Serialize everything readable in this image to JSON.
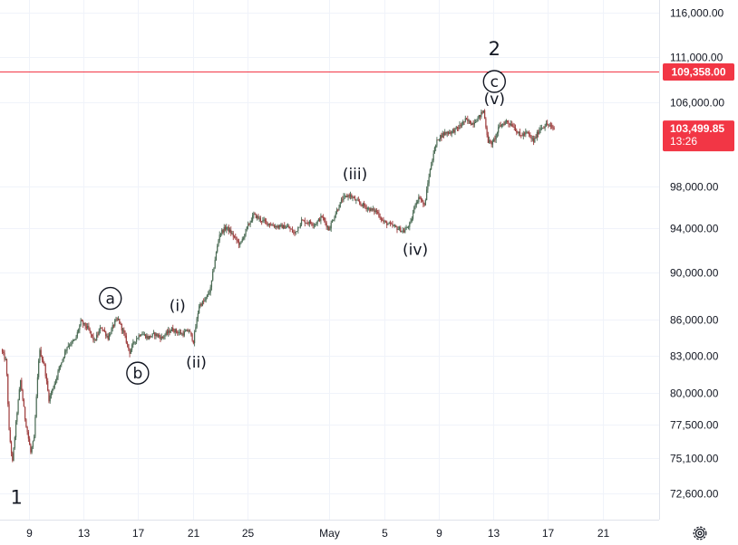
{
  "chart_data": {
    "type": "candlestick",
    "y_ticks": [
      {
        "value": 116000,
        "label": "116,000.00"
      },
      {
        "value": 111000,
        "label": "111,000.00"
      },
      {
        "value": 106000,
        "label": "106,000.00"
      },
      {
        "value": 98000,
        "label": "98,000.00"
      },
      {
        "value": 94000,
        "label": "94,000.00"
      },
      {
        "value": 90000,
        "label": "90,000.00"
      },
      {
        "value": 86000,
        "label": "86,000.00"
      },
      {
        "value": 83000,
        "label": "83,000.00"
      },
      {
        "value": 80000,
        "label": "80,000.00"
      },
      {
        "value": 77500,
        "label": "77,500.00"
      },
      {
        "value": 75100,
        "label": "75,100.00"
      },
      {
        "value": 72600,
        "label": "72,600.00"
      }
    ],
    "x_ticks": [
      {
        "date": "2025-04-09",
        "label": "9"
      },
      {
        "date": "2025-04-13",
        "label": "13"
      },
      {
        "date": "2025-04-17",
        "label": "17"
      },
      {
        "date": "2025-04-21",
        "label": "21"
      },
      {
        "date": "2025-04-25",
        "label": "25"
      },
      {
        "date": "2025-05-01",
        "label": "May"
      },
      {
        "date": "2025-05-05",
        "label": "5"
      },
      {
        "date": "2025-05-09",
        "label": "9"
      },
      {
        "date": "2025-05-13",
        "label": "13"
      },
      {
        "date": "2025-05-17",
        "label": "17"
      },
      {
        "date": "2025-05-21",
        "label": "21"
      }
    ],
    "x_range": [
      "2025-04-06T21:00",
      "2025-05-24T00:00"
    ],
    "price_path": [
      [
        "2025-04-07T00:00",
        83500
      ],
      [
        "2025-04-07T09:00",
        82500
      ],
      [
        "2025-04-07T14:00",
        77000
      ],
      [
        "2025-04-07T20:00",
        74800
      ],
      [
        "2025-04-08T04:00",
        78500
      ],
      [
        "2025-04-08T10:00",
        81000
      ],
      [
        "2025-04-08T18:00",
        78000
      ],
      [
        "2025-04-09T04:00",
        75500
      ],
      [
        "2025-04-09T10:00",
        76500
      ],
      [
        "2025-04-09T19:00",
        83500
      ],
      [
        "2025-04-10T04:00",
        82200
      ],
      [
        "2025-04-10T12:00",
        79500
      ],
      [
        "2025-04-10T20:00",
        80500
      ],
      [
        "2025-04-11T06:00",
        82000
      ],
      [
        "2025-04-11T20:00",
        83800
      ],
      [
        "2025-04-12T10:00",
        84300
      ],
      [
        "2025-04-12T20:00",
        85800
      ],
      [
        "2025-04-13T08:00",
        85300
      ],
      [
        "2025-04-13T20:00",
        84200
      ],
      [
        "2025-04-14T08:00",
        85400
      ],
      [
        "2025-04-14T20:00",
        84500
      ],
      [
        "2025-04-15T08:00",
        85800
      ],
      [
        "2025-04-15T14:00",
        86000
      ],
      [
        "2025-04-16T00:00",
        84800
      ],
      [
        "2025-04-16T10:00",
        83300
      ],
      [
        "2025-04-16T18:00",
        84200
      ],
      [
        "2025-04-17T06:00",
        84900
      ],
      [
        "2025-04-17T18:00",
        84500
      ],
      [
        "2025-04-18T06:00",
        84800
      ],
      [
        "2025-04-18T18:00",
        84500
      ],
      [
        "2025-04-19T12:00",
        85200
      ],
      [
        "2025-04-20T06:00",
        84800
      ],
      [
        "2025-04-20T18:00",
        85100
      ],
      [
        "2025-04-21T02:00",
        84200
      ],
      [
        "2025-04-21T12:00",
        87200
      ],
      [
        "2025-04-21T22:00",
        87600
      ],
      [
        "2025-04-22T08:00",
        88600
      ],
      [
        "2025-04-22T16:00",
        91200
      ],
      [
        "2025-04-23T00:00",
        93500
      ],
      [
        "2025-04-23T12:00",
        94100
      ],
      [
        "2025-04-24T00:00",
        93300
      ],
      [
        "2025-04-24T12:00",
        92500
      ],
      [
        "2025-04-25T00:00",
        94000
      ],
      [
        "2025-04-25T12:00",
        95300
      ],
      [
        "2025-04-26T00:00",
        94800
      ],
      [
        "2025-04-27T00:00",
        94200
      ],
      [
        "2025-04-28T00:00",
        94100
      ],
      [
        "2025-04-28T12:00",
        93500
      ],
      [
        "2025-04-29T00:00",
        94700
      ],
      [
        "2025-04-30T00:00",
        94400
      ],
      [
        "2025-04-30T12:00",
        95100
      ],
      [
        "2025-05-01T00:00",
        93900
      ],
      [
        "2025-05-01T14:00",
        95700
      ],
      [
        "2025-05-02T00:00",
        96800
      ],
      [
        "2025-05-02T12:00",
        97200
      ],
      [
        "2025-05-03T00:00",
        96600
      ],
      [
        "2025-05-03T12:00",
        96200
      ],
      [
        "2025-05-04T00:00",
        95800
      ],
      [
        "2025-05-04T12:00",
        95600
      ],
      [
        "2025-05-05T00:00",
        94600
      ],
      [
        "2025-05-05T12:00",
        94300
      ],
      [
        "2025-05-06T00:00",
        94000
      ],
      [
        "2025-05-06T12:00",
        93700
      ],
      [
        "2025-05-07T00:00",
        94500
      ],
      [
        "2025-05-07T08:00",
        96400
      ],
      [
        "2025-05-07T16:00",
        97000
      ],
      [
        "2025-05-08T00:00",
        96100
      ],
      [
        "2025-05-08T08:00",
        99000
      ],
      [
        "2025-05-08T16:00",
        101200
      ],
      [
        "2025-05-09T00:00",
        102600
      ],
      [
        "2025-05-09T12:00",
        103100
      ],
      [
        "2025-05-10T00:00",
        103200
      ],
      [
        "2025-05-10T12:00",
        103600
      ],
      [
        "2025-05-11T00:00",
        104300
      ],
      [
        "2025-05-11T12:00",
        104000
      ],
      [
        "2025-05-12T00:00",
        104600
      ],
      [
        "2025-05-12T08:00",
        105200
      ],
      [
        "2025-05-12T16:00",
        102300
      ],
      [
        "2025-05-13T00:00",
        102100
      ],
      [
        "2025-05-13T12:00",
        103700
      ],
      [
        "2025-05-14T00:00",
        104200
      ],
      [
        "2025-05-14T12:00",
        103800
      ],
      [
        "2025-05-15T00:00",
        102800
      ],
      [
        "2025-05-15T12:00",
        103100
      ],
      [
        "2025-05-16T00:00",
        102300
      ],
      [
        "2025-05-16T12:00",
        103600
      ],
      [
        "2025-05-17T00:00",
        103900
      ],
      [
        "2025-05-17T10:00",
        103500
      ]
    ],
    "price_line": {
      "value": 109358,
      "label": "109,358.00",
      "color": "#f23645"
    },
    "last_price": {
      "value": 103499.85,
      "label": "103,499.85",
      "countdown": "13:26",
      "color": "#f23645"
    },
    "candle_up_color": "#4a6b54",
    "candle_down_color": "#9e3d3d",
    "annotations": [
      {
        "label": "1",
        "date": "2025-04-08T02:00",
        "value": 72300,
        "size": "large",
        "circled": false
      },
      {
        "label": "a",
        "date": "2025-04-14T23:00",
        "value": 87800,
        "size": "normal",
        "circled": true
      },
      {
        "label": "b",
        "date": "2025-04-16T23:00",
        "value": 81600,
        "size": "normal",
        "circled": true
      },
      {
        "label": "(i)",
        "date": "2025-04-19T21:00",
        "value": 87200,
        "size": "normal",
        "circled": false
      },
      {
        "label": "(ii)",
        "date": "2025-04-21T06:00",
        "value": 82500,
        "size": "normal",
        "circled": false
      },
      {
        "label": "(iii)",
        "date": "2025-05-02T21:00",
        "value": 99200,
        "size": "normal",
        "circled": false
      },
      {
        "label": "(iv)",
        "date": "2025-05-07T07:00",
        "value": 92100,
        "size": "normal",
        "circled": false
      },
      {
        "label": "(v)",
        "date": "2025-05-13T02:00",
        "value": 106400,
        "size": "normal",
        "circled": false
      },
      {
        "label": "c",
        "date": "2025-05-13T02:00",
        "value": 108300,
        "size": "normal",
        "circled": true
      },
      {
        "label": "2",
        "date": "2025-05-13T02:00",
        "value": 111900,
        "size": "large",
        "circled": false
      }
    ],
    "settings_icon": "gear-icon"
  }
}
